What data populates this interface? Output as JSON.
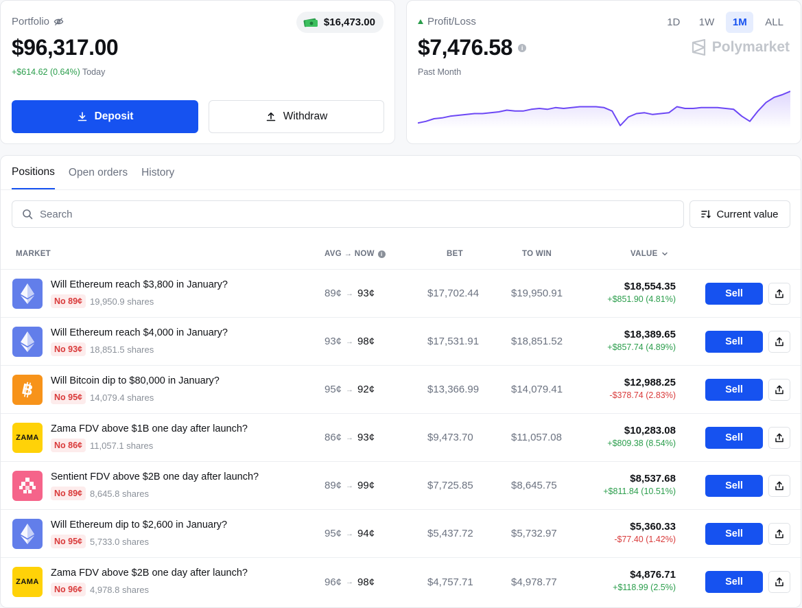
{
  "portfolio": {
    "label": "Portfolio",
    "cash": "$16,473.00",
    "value": "$96,317.00",
    "change": "+$614.62 (0.64%)",
    "change_period": "Today",
    "deposit_label": "Deposit",
    "withdraw_label": "Withdraw"
  },
  "pnl": {
    "label": "Profit/Loss",
    "value": "$7,476.58",
    "period": "Past Month",
    "brand": "Polymarket",
    "ranges": [
      "1D",
      "1W",
      "1M",
      "ALL"
    ],
    "active_range": "1M",
    "series": [
      8,
      10,
      13,
      14,
      16,
      17,
      18,
      19,
      19,
      20,
      21,
      23,
      22,
      22,
      24,
      25,
      24,
      26,
      25,
      26,
      27,
      27,
      27,
      26,
      22,
      5,
      15,
      19,
      20,
      18,
      19,
      20,
      27,
      25,
      25,
      26,
      26,
      26,
      25,
      24,
      16,
      10,
      22,
      32,
      38,
      41,
      45
    ],
    "accent_color": "#6c47f5"
  },
  "tabs": [
    "Positions",
    "Open orders",
    "History"
  ],
  "active_tab": "Positions",
  "search": {
    "placeholder": "Search"
  },
  "sort_label": "Current value",
  "columns": {
    "market": "MARKET",
    "avg_now": "AVG → NOW",
    "bet": "BET",
    "to_win": "TO WIN",
    "value": "VALUE"
  },
  "rows": [
    {
      "icon": "ethereum",
      "title": "Will Ethereum reach $3,800 in January?",
      "outcome": "No 89¢",
      "shares": "19,950.9 shares",
      "avg": "89¢",
      "now": "93¢",
      "bet": "$17,702.44",
      "to_win": "$19,950.91",
      "value": "$18,554.35",
      "change": "+$851.90 (4.81%)",
      "change_dir": "pos",
      "sell": "Sell"
    },
    {
      "icon": "ethereum",
      "title": "Will Ethereum reach $4,000 in January?",
      "outcome": "No 93¢",
      "shares": "18,851.5 shares",
      "avg": "93¢",
      "now": "98¢",
      "bet": "$17,531.91",
      "to_win": "$18,851.52",
      "value": "$18,389.65",
      "change": "+$857.74 (4.89%)",
      "change_dir": "pos",
      "sell": "Sell"
    },
    {
      "icon": "bitcoin",
      "title": "Will Bitcoin dip to $80,000 in January?",
      "outcome": "No 95¢",
      "shares": "14,079.4 shares",
      "avg": "95¢",
      "now": "92¢",
      "bet": "$13,366.99",
      "to_win": "$14,079.41",
      "value": "$12,988.25",
      "change": "-$378.74 (2.83%)",
      "change_dir": "neg",
      "sell": "Sell"
    },
    {
      "icon": "zama",
      "title": "Zama FDV above $1B one day after launch?",
      "outcome": "No 86¢",
      "shares": "11,057.1 shares",
      "avg": "86¢",
      "now": "93¢",
      "bet": "$9,473.70",
      "to_win": "$11,057.08",
      "value": "$10,283.08",
      "change": "+$809.38 (8.54%)",
      "change_dir": "pos",
      "sell": "Sell"
    },
    {
      "icon": "sentient",
      "title": "Sentient FDV above $2B one day after launch?",
      "outcome": "No 89¢",
      "shares": "8,645.8 shares",
      "avg": "89¢",
      "now": "99¢",
      "bet": "$7,725.85",
      "to_win": "$8,645.75",
      "value": "$8,537.68",
      "change": "+$811.84 (10.51%)",
      "change_dir": "pos",
      "sell": "Sell"
    },
    {
      "icon": "ethereum",
      "title": "Will Ethereum dip to $2,600 in January?",
      "outcome": "No 95¢",
      "shares": "5,733.0 shares",
      "avg": "95¢",
      "now": "94¢",
      "bet": "$5,437.72",
      "to_win": "$5,732.97",
      "value": "$5,360.33",
      "change": "-$77.40 (1.42%)",
      "change_dir": "neg",
      "sell": "Sell"
    },
    {
      "icon": "zama",
      "title": "Zama FDV above $2B one day after launch?",
      "outcome": "No 96¢",
      "shares": "4,978.8 shares",
      "avg": "96¢",
      "now": "98¢",
      "bet": "$4,757.71",
      "to_win": "$4,978.77",
      "value": "$4,876.71",
      "change": "+$118.99 (2.5%)",
      "change_dir": "pos",
      "sell": "Sell"
    }
  ],
  "colors": {
    "primary": "#1652f0",
    "positive": "#2a9d4b",
    "negative": "#d93a3a",
    "ethereum_bg": "#627eea",
    "bitcoin_bg": "#f7931a",
    "zama_bg": "#ffd208",
    "sentient_bg": "#f5648a"
  },
  "icon_text": {
    "zama": "ZAMA"
  }
}
